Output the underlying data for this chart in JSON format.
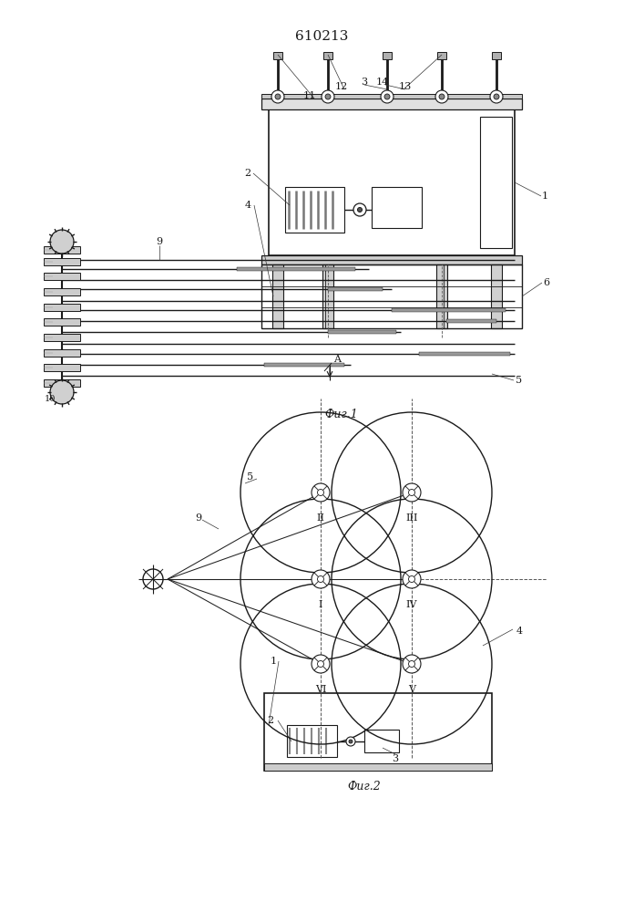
{
  "title": "610213",
  "fig1_caption": "Фиг.1",
  "fig2_caption": "Фиг.2",
  "line_color": "#1a1a1a",
  "font_size": 9,
  "title_font_size": 11
}
